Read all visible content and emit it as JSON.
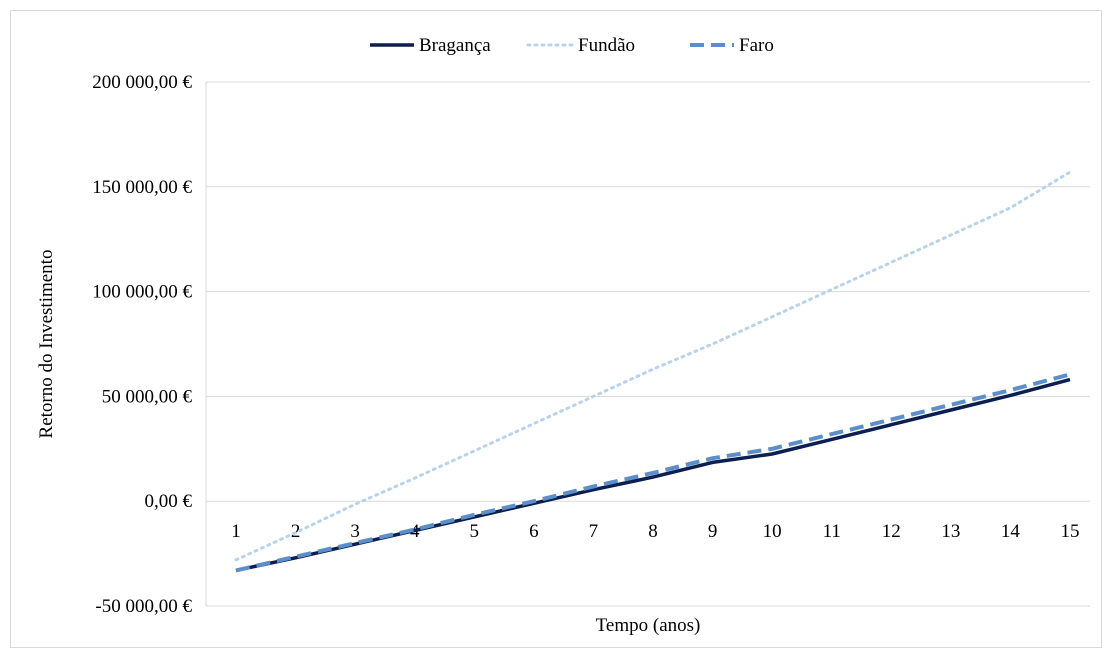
{
  "chart_data": {
    "type": "line",
    "title": "",
    "xlabel": "Tempo (anos)",
    "ylabel": "Retorno do Investimento",
    "x": [
      1,
      2,
      3,
      4,
      5,
      6,
      7,
      8,
      9,
      10,
      11,
      12,
      13,
      14,
      15
    ],
    "x_tick_labels": [
      "1",
      "2",
      "3",
      "4",
      "5",
      "6",
      "7",
      "8",
      "9",
      "10",
      "11",
      "12",
      "13",
      "14",
      "15"
    ],
    "ylim": [
      -50000,
      200000
    ],
    "y_ticks": [
      -50000,
      0,
      50000,
      100000,
      150000,
      200000
    ],
    "y_tick_labels": [
      "-50 000,00 €",
      "0,00 €",
      "50 000,00 €",
      "100 000,00 €",
      "150 000,00 €",
      "200 000,00 €"
    ],
    "grid": true,
    "legend_position": "top",
    "series": [
      {
        "name": "Bragança",
        "color": "#0d1f4f",
        "style": "solid",
        "values": [
          -33000,
          -27000,
          -20500,
          -14000,
          -7500,
          -1000,
          5500,
          11500,
          18500,
          22500,
          29500,
          36500,
          43500,
          50500,
          58000
        ]
      },
      {
        "name": "Fundão",
        "color": "#b8d3ea",
        "style": "dotted",
        "values": [
          -28000,
          -15000,
          -1500,
          11000,
          24000,
          37000,
          50000,
          63000,
          75000,
          88000,
          101000,
          114000,
          127000,
          140000,
          157000
        ]
      },
      {
        "name": "Faro",
        "color": "#5b8fcc",
        "style": "dashed",
        "values": [
          -33000,
          -26500,
          -20000,
          -13500,
          -6500,
          0,
          7000,
          13500,
          20500,
          25000,
          32000,
          39000,
          46000,
          53000,
          60500
        ]
      }
    ]
  }
}
